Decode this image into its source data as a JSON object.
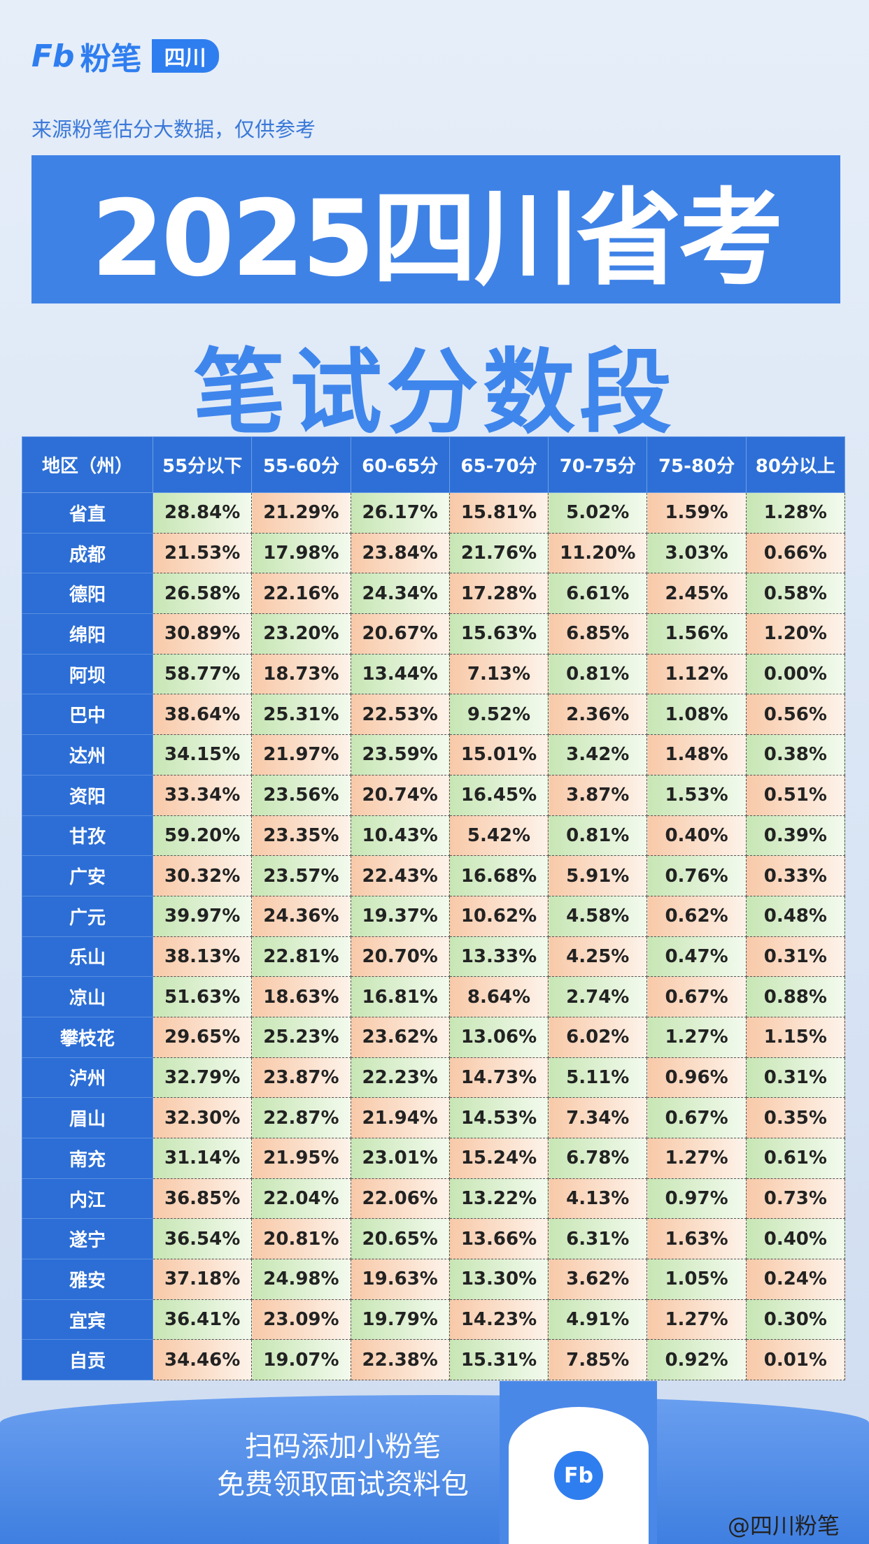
{
  "header": {
    "logo_mark": "Fb",
    "logo_name": "粉笔",
    "logo_region": "四川",
    "source_note": "来源粉笔估分大数据，仅供参考",
    "title": "2025四川省考",
    "subtitle": "笔试分数段"
  },
  "table": {
    "columns": [
      "地区（州）",
      "55分以下",
      "55-60分",
      "60-65分",
      "65-70分",
      "70-75分",
      "75-80分",
      "80分以上"
    ],
    "rows": [
      [
        "省直",
        "28.84%",
        "21.29%",
        "26.17%",
        "15.81%",
        "5.02%",
        "1.59%",
        "1.28%"
      ],
      [
        "成都",
        "21.53%",
        "17.98%",
        "23.84%",
        "21.76%",
        "11.20%",
        "3.03%",
        "0.66%"
      ],
      [
        "德阳",
        "26.58%",
        "22.16%",
        "24.34%",
        "17.28%",
        "6.61%",
        "2.45%",
        "0.58%"
      ],
      [
        "绵阳",
        "30.89%",
        "23.20%",
        "20.67%",
        "15.63%",
        "6.85%",
        "1.56%",
        "1.20%"
      ],
      [
        "阿坝",
        "58.77%",
        "18.73%",
        "13.44%",
        "7.13%",
        "0.81%",
        "1.12%",
        "0.00%"
      ],
      [
        "巴中",
        "38.64%",
        "25.31%",
        "22.53%",
        "9.52%",
        "2.36%",
        "1.08%",
        "0.56%"
      ],
      [
        "达州",
        "34.15%",
        "21.97%",
        "23.59%",
        "15.01%",
        "3.42%",
        "1.48%",
        "0.38%"
      ],
      [
        "资阳",
        "33.34%",
        "23.56%",
        "20.74%",
        "16.45%",
        "3.87%",
        "1.53%",
        "0.51%"
      ],
      [
        "甘孜",
        "59.20%",
        "23.35%",
        "10.43%",
        "5.42%",
        "0.81%",
        "0.40%",
        "0.39%"
      ],
      [
        "广安",
        "30.32%",
        "23.57%",
        "22.43%",
        "16.68%",
        "5.91%",
        "0.76%",
        "0.33%"
      ],
      [
        "广元",
        "39.97%",
        "24.36%",
        "19.37%",
        "10.62%",
        "4.58%",
        "0.62%",
        "0.48%"
      ],
      [
        "乐山",
        "38.13%",
        "22.81%",
        "20.70%",
        "13.33%",
        "4.25%",
        "0.47%",
        "0.31%"
      ],
      [
        "凉山",
        "51.63%",
        "18.63%",
        "16.81%",
        "8.64%",
        "2.74%",
        "0.67%",
        "0.88%"
      ],
      [
        "攀枝花",
        "29.65%",
        "25.23%",
        "23.62%",
        "13.06%",
        "6.02%",
        "1.27%",
        "1.15%"
      ],
      [
        "泸州",
        "32.79%",
        "23.87%",
        "22.23%",
        "14.73%",
        "5.11%",
        "0.96%",
        "0.31%"
      ],
      [
        "眉山",
        "32.30%",
        "22.87%",
        "21.94%",
        "14.53%",
        "7.34%",
        "0.67%",
        "0.35%"
      ],
      [
        "南充",
        "31.14%",
        "21.95%",
        "23.01%",
        "15.24%",
        "6.78%",
        "1.27%",
        "0.61%"
      ],
      [
        "内江",
        "36.85%",
        "22.04%",
        "22.06%",
        "13.22%",
        "4.13%",
        "0.97%",
        "0.73%"
      ],
      [
        "遂宁",
        "36.54%",
        "20.81%",
        "20.65%",
        "13.66%",
        "6.31%",
        "1.63%",
        "0.40%"
      ],
      [
        "雅安",
        "37.18%",
        "24.98%",
        "19.63%",
        "13.30%",
        "3.62%",
        "1.05%",
        "0.24%"
      ],
      [
        "宜宾",
        "36.41%",
        "23.09%",
        "19.79%",
        "14.23%",
        "4.91%",
        "1.27%",
        "0.30%"
      ],
      [
        "自贡",
        "34.46%",
        "19.07%",
        "22.38%",
        "15.31%",
        "7.85%",
        "0.92%",
        "0.01%"
      ]
    ]
  },
  "footer": {
    "line1": "扫码添加小粉笔",
    "line2": "免费领取面试资料包",
    "qr_mark": "Fb",
    "weibo": "@四川粉笔"
  }
}
